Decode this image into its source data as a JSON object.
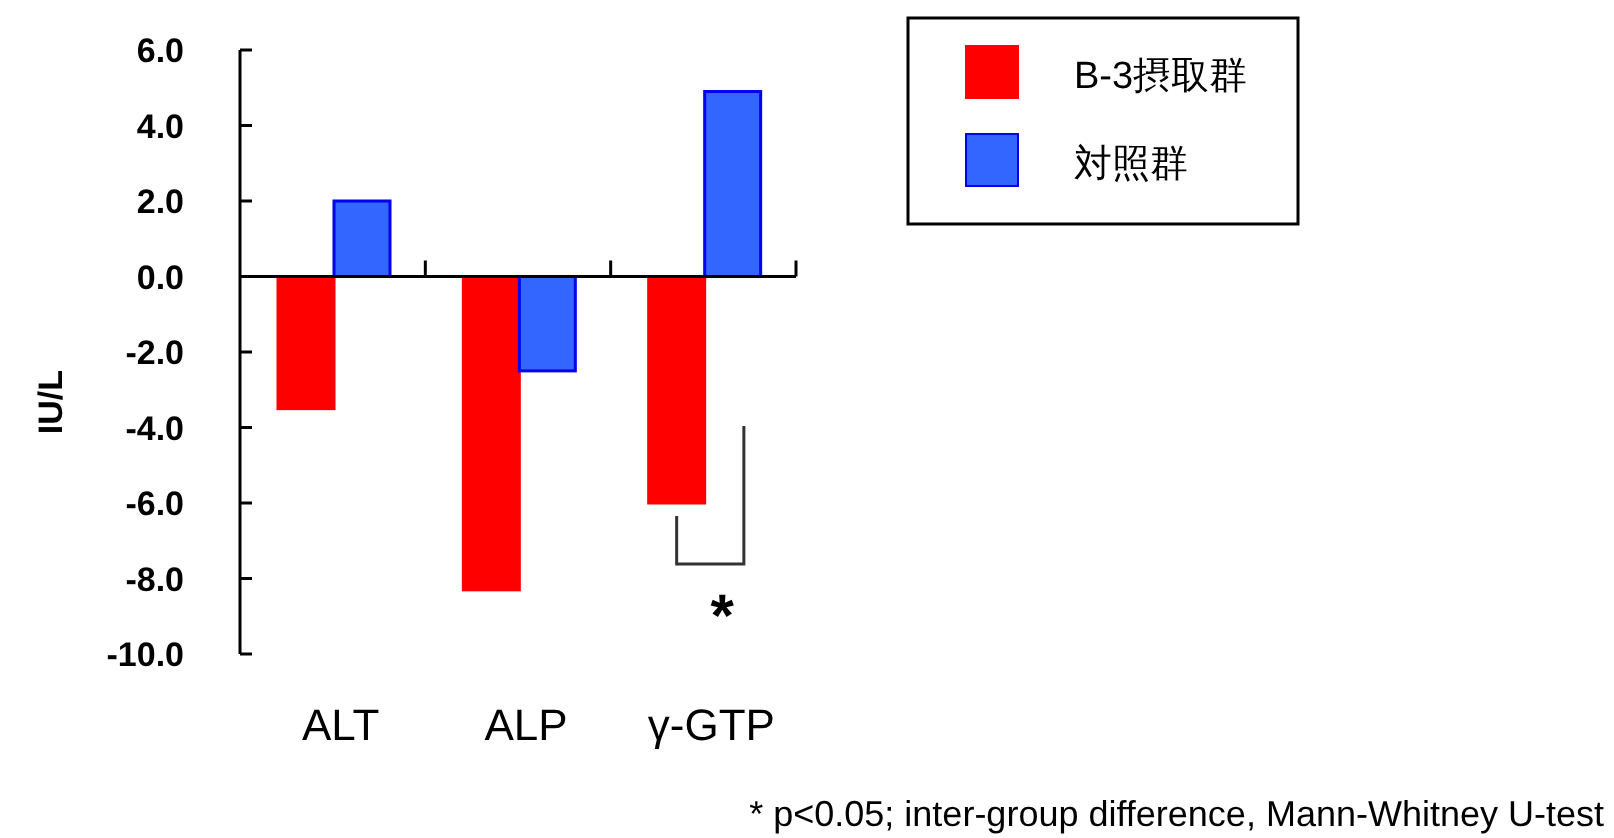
{
  "chart_data": {
    "type": "bar",
    "categories": [
      "ALT",
      "ALP",
      "γ-GTP"
    ],
    "ylabel": "IU/L",
    "series": [
      {
        "name": "B-3摂取群",
        "color": "#ff0000",
        "values": [
          -3.5,
          -8.3,
          -6.0
        ]
      },
      {
        "name": "対照群",
        "color": "#3366ff",
        "values": [
          2.0,
          -2.5,
          4.9
        ]
      }
    ],
    "ylim": [
      -10,
      6
    ],
    "yticks": [
      {
        "value": 6,
        "label": "6.0"
      },
      {
        "value": 4,
        "label": "4.0"
      },
      {
        "value": 2,
        "label": "2.0"
      },
      {
        "value": 0,
        "label": "0.0"
      },
      {
        "value": -2,
        "label": "-2.0"
      },
      {
        "value": -4,
        "label": "-4.0"
      },
      {
        "value": -6,
        "label": "-6.0"
      },
      {
        "value": -8,
        "label": "-8.0"
      },
      {
        "value": -10,
        "label": "-10.0"
      }
    ],
    "legend": "top right",
    "annotations": [
      "*",
      "* p<0.05; inter-group difference, Mann-Whitney U-test"
    ]
  }
}
